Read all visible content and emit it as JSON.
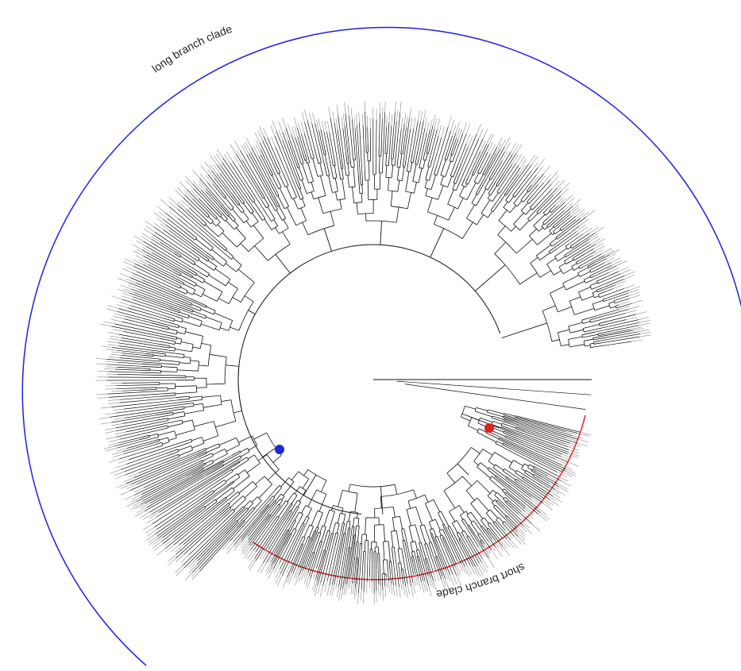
{
  "clades": {
    "long": {
      "label": "long branch clade",
      "color": "#2020dd"
    },
    "short": {
      "label": "short branch clade",
      "color": "#e01f1f"
    }
  },
  "nodes": {
    "long_clade_root": {
      "color": "#1c2bd6"
    },
    "short_clade_root": {
      "color": "#e0201a"
    }
  },
  "tree": {
    "branch_color": "#111111",
    "tip_color": "#8a8a8a"
  }
}
